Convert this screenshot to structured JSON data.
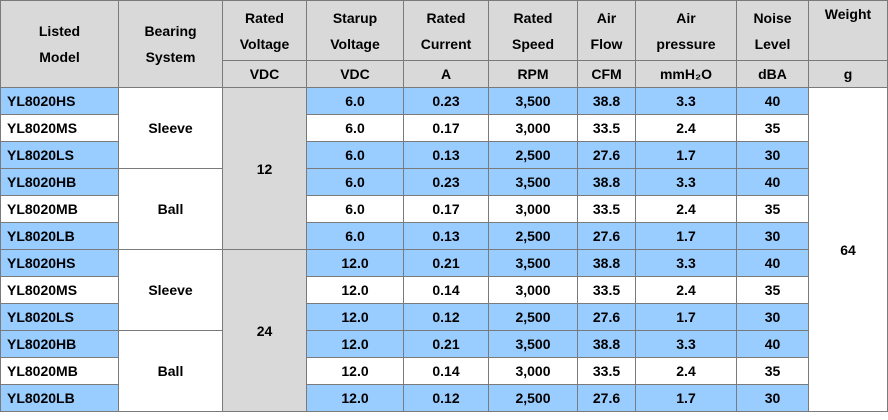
{
  "headers": [
    {
      "l1": "Listed",
      "l2": "Model",
      "unit": ""
    },
    {
      "l1": "Bearing",
      "l2": "System",
      "unit": ""
    },
    {
      "l1": "Rated",
      "l2": "Voltage",
      "unit": "VDC"
    },
    {
      "l1": "Starup",
      "l2": "Voltage",
      "unit": "VDC"
    },
    {
      "l1": "Rated",
      "l2": "Current",
      "unit": "A"
    },
    {
      "l1": "Rated",
      "l2": "Speed",
      "unit": "RPM"
    },
    {
      "l1": "Air",
      "l2": "Flow",
      "unit": "CFM"
    },
    {
      "l1": "Air",
      "l2": "pressure",
      "unit": "mmH₂O"
    },
    {
      "l1": "Noise",
      "l2": "Level",
      "unit": "dBA"
    },
    {
      "l1": "Weight",
      "l2": "",
      "unit": "g"
    }
  ],
  "groups": {
    "bearing": [
      "Sleeve",
      "Ball",
      "Sleeve",
      "Ball"
    ],
    "voltage": [
      "12",
      "24"
    ],
    "weight": "64"
  },
  "rows": [
    {
      "model": "YL8020HS",
      "start": "6.0",
      "current": "0.23",
      "speed": "3,500",
      "flow": "38.8",
      "pressure": "3.3",
      "noise": "40"
    },
    {
      "model": "YL8020MS",
      "start": "6.0",
      "current": "0.17",
      "speed": "3,000",
      "flow": "33.5",
      "pressure": "2.4",
      "noise": "35"
    },
    {
      "model": "YL8020LS",
      "start": "6.0",
      "current": "0.13",
      "speed": "2,500",
      "flow": "27.6",
      "pressure": "1.7",
      "noise": "30"
    },
    {
      "model": "YL8020HB",
      "start": "6.0",
      "current": "0.23",
      "speed": "3,500",
      "flow": "38.8",
      "pressure": "3.3",
      "noise": "40"
    },
    {
      "model": "YL8020MB",
      "start": "6.0",
      "current": "0.17",
      "speed": "3,000",
      "flow": "33.5",
      "pressure": "2.4",
      "noise": "35"
    },
    {
      "model": "YL8020LB",
      "start": "6.0",
      "current": "0.13",
      "speed": "2,500",
      "flow": "27.6",
      "pressure": "1.7",
      "noise": "30"
    },
    {
      "model": "YL8020HS",
      "start": "12.0",
      "current": "0.21",
      "speed": "3,500",
      "flow": "38.8",
      "pressure": "3.3",
      "noise": "40"
    },
    {
      "model": "YL8020MS",
      "start": "12.0",
      "current": "0.14",
      "speed": "3,000",
      "flow": "33.5",
      "pressure": "2.4",
      "noise": "35"
    },
    {
      "model": "YL8020LS",
      "start": "12.0",
      "current": "0.12",
      "speed": "2,500",
      "flow": "27.6",
      "pressure": "1.7",
      "noise": "30"
    },
    {
      "model": "YL8020HB",
      "start": "12.0",
      "current": "0.21",
      "speed": "3,500",
      "flow": "38.8",
      "pressure": "3.3",
      "noise": "40"
    },
    {
      "model": "YL8020MB",
      "start": "12.0",
      "current": "0.14",
      "speed": "3,000",
      "flow": "33.5",
      "pressure": "2.4",
      "noise": "35"
    },
    {
      "model": "YL8020LB",
      "start": "12.0",
      "current": "0.12",
      "speed": "2,500",
      "flow": "27.6",
      "pressure": "1.7",
      "noise": "30"
    }
  ],
  "colors": {
    "header_bg": "#d9d9d9",
    "highlight_row": "#99ccff",
    "border": "#7a7a7a"
  }
}
